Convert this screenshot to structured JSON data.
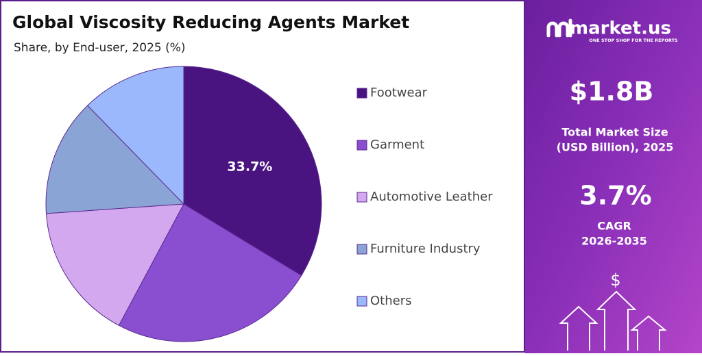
{
  "chart_data": {
    "type": "pie",
    "title": "Global Viscosity Reducing Agents Market",
    "subtitle": "Share, by End-user, 2025 (%)",
    "categories": [
      "Footwear",
      "Garment",
      "Automotive Leather",
      "Furniture Industry",
      "Others"
    ],
    "values": [
      33.7,
      24.1,
      16.1,
      13.8,
      12.3
    ],
    "value_labels": [
      "33.7%",
      null,
      null,
      null,
      null
    ],
    "colors": [
      "#4a1480",
      "#8a4fd0",
      "#d4a8ef",
      "#8aa4d6",
      "#9ab8fb"
    ],
    "legend": "right"
  },
  "sidebar": {
    "brand": "market.us",
    "tagline": "ONE STOP SHOP FOR THE REPORTS",
    "market_size": "$1.8B",
    "market_size_label": [
      "Total Market Size",
      "(USD Billion), 2025"
    ],
    "cagr": "3.7%",
    "cagr_label": [
      "CAGR",
      "2026-2035"
    ],
    "icon": "$"
  }
}
